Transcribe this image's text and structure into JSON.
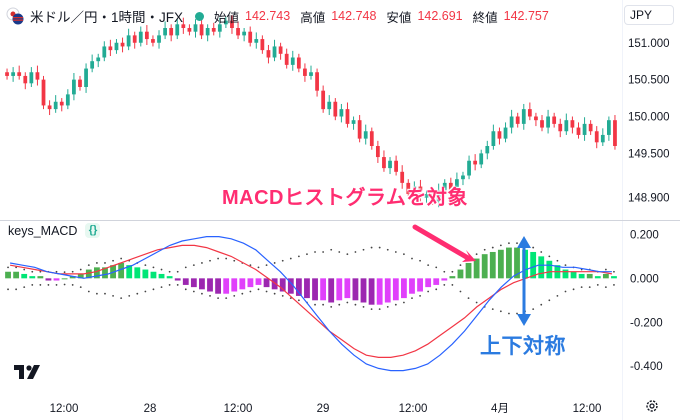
{
  "header": {
    "symbol_title": "米ドル／円・1時間・JFX",
    "open_label": "始値",
    "open_value": "142.743",
    "high_label": "高値",
    "high_value": "142.748",
    "low_label": "安値",
    "low_value": "142.691",
    "close_label": "終値",
    "close_value": "142.757",
    "currency": "JPY",
    "status_color": "#22ab94"
  },
  "indicator": {
    "name": "keys_MACD",
    "badge": "{}"
  },
  "annotations": {
    "target": "MACDヒストグラムを対象",
    "symmetric": "上下対称"
  },
  "icons": {
    "logo": "tradingview-logo",
    "settings": "gear-icon",
    "flag": "us-jp-flag-icon"
  },
  "colors": {
    "up": "#22ab94",
    "down": "#f23645",
    "macd_line": "#2962ff",
    "signal_line": "#f23645",
    "hist_pos_strong": "#4caf50",
    "hist_pos_weak": "#00e676",
    "hist_neg_strong": "#9c27b0",
    "hist_neg_weak": "#e040fb",
    "annotation_pink": "#ff2d71",
    "annotation_blue": "#2b7be0"
  },
  "chart_data": [
    {
      "type": "candlestick",
      "title": "米ドル／円・1時間・JFX",
      "y_ticks": [
        "151.000",
        "150.500",
        "150.000",
        "149.500",
        "148.900"
      ],
      "ylim": [
        148.8,
        151.2
      ],
      "x_ticks": [
        "12:00",
        "28",
        "12:00",
        "29",
        "12:00",
        "4月",
        "12:00"
      ],
      "close": [
        150.55,
        150.6,
        150.55,
        150.45,
        150.6,
        150.5,
        150.15,
        150.1,
        150.2,
        150.15,
        150.3,
        150.5,
        150.4,
        150.65,
        150.75,
        150.8,
        150.95,
        150.9,
        151.0,
        150.95,
        151.1,
        151.0,
        151.15,
        151.05,
        151.0,
        151.1,
        151.2,
        151.1,
        151.25,
        151.2,
        151.15,
        151.25,
        151.1,
        151.2,
        151.15,
        151.25,
        151.3,
        151.2,
        151.1,
        151.15,
        151.0,
        151.05,
        150.9,
        150.8,
        150.95,
        150.85,
        150.7,
        150.8,
        150.65,
        150.55,
        150.6,
        150.35,
        150.1,
        150.2,
        150.0,
        150.1,
        149.9,
        149.95,
        149.7,
        149.8,
        149.6,
        149.45,
        149.3,
        149.4,
        149.25,
        149.1,
        148.95,
        149.05,
        148.9,
        148.95,
        148.85,
        149.0,
        149.1,
        149.0,
        149.15,
        149.2,
        149.4,
        149.35,
        149.5,
        149.6,
        149.8,
        149.7,
        149.85,
        150.0,
        149.9,
        150.1,
        150.0,
        149.95,
        149.85,
        150.0,
        149.9,
        149.8,
        149.95,
        149.85,
        149.75,
        149.9,
        149.8,
        149.65,
        149.75,
        149.95,
        149.6
      ]
    },
    {
      "type": "macd",
      "title": "keys_MACD",
      "y_ticks": [
        "0.200",
        "0.000",
        "-0.200",
        "-0.400"
      ],
      "ylim": [
        -0.44,
        0.22
      ],
      "histogram": [
        0.03,
        0.03,
        0.02,
        0.01,
        0.01,
        -0.01,
        -0.01,
        0.0,
        0.01,
        0.02,
        0.04,
        0.05,
        0.05,
        0.06,
        0.07,
        0.06,
        0.05,
        0.04,
        0.03,
        0.02,
        0.01,
        -0.01,
        -0.03,
        -0.04,
        -0.05,
        -0.06,
        -0.07,
        -0.07,
        -0.06,
        -0.05,
        -0.04,
        -0.03,
        -0.04,
        -0.05,
        -0.06,
        -0.07,
        -0.08,
        -0.09,
        -0.1,
        -0.1,
        -0.11,
        -0.1,
        -0.09,
        -0.1,
        -0.11,
        -0.12,
        -0.12,
        -0.11,
        -0.1,
        -0.09,
        -0.07,
        -0.06,
        -0.04,
        -0.03,
        -0.01,
        0.01,
        0.04,
        0.07,
        0.09,
        0.11,
        0.12,
        0.13,
        0.14,
        0.14,
        0.13,
        0.12,
        0.1,
        0.08,
        0.06,
        0.04,
        0.03,
        0.02,
        0.02,
        0.01,
        0.02,
        0.01
      ],
      "macd": [
        0.07,
        0.06,
        0.05,
        0.03,
        0.02,
        0.01,
        0.0,
        0.01,
        0.02,
        0.04,
        0.06,
        0.09,
        0.12,
        0.15,
        0.17,
        0.18,
        0.19,
        0.19,
        0.18,
        0.16,
        0.13,
        0.08,
        0.03,
        -0.03,
        -0.1,
        -0.17,
        -0.24,
        -0.3,
        -0.35,
        -0.39,
        -0.41,
        -0.42,
        -0.42,
        -0.41,
        -0.39,
        -0.35,
        -0.3,
        -0.24,
        -0.17,
        -0.1,
        -0.04,
        0.01,
        0.04,
        0.06,
        0.06,
        0.05,
        0.05,
        0.04,
        0.03,
        0.03
      ],
      "signal": [
        0.06,
        0.05,
        0.04,
        0.03,
        0.02,
        0.02,
        0.02,
        0.03,
        0.05,
        0.07,
        0.09,
        0.11,
        0.13,
        0.14,
        0.15,
        0.15,
        0.14,
        0.12,
        0.1,
        0.07,
        0.04,
        0.0,
        -0.04,
        -0.09,
        -0.14,
        -0.19,
        -0.24,
        -0.28,
        -0.32,
        -0.35,
        -0.36,
        -0.36,
        -0.35,
        -0.33,
        -0.3,
        -0.26,
        -0.22,
        -0.18,
        -0.13,
        -0.09,
        -0.05,
        -0.02,
        0.0,
        0.02,
        0.03,
        0.03,
        0.03,
        0.03,
        0.03,
        0.02
      ]
    }
  ]
}
